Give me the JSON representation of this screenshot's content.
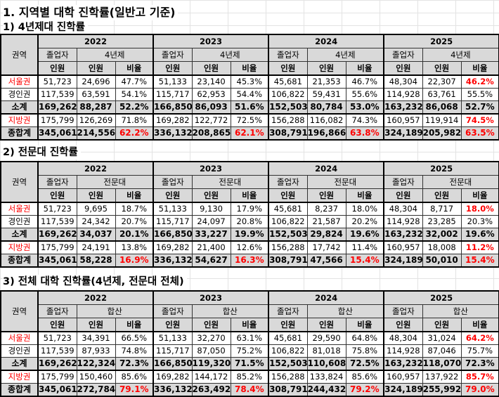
{
  "title": "1. 지역별 대학 진학률(일반고 기준)",
  "colors": {
    "highlight": "#ff0000",
    "header_bg": "#d9d9d9"
  },
  "headers": {
    "region": "권역",
    "graduates": "졸업자",
    "count": "인원",
    "ratio": "비율",
    "years": [
      "2022",
      "2023",
      "2024",
      "2025"
    ]
  },
  "sections": [
    {
      "title": "1) 4년제대 진학률",
      "group_label": "4년제",
      "rows": [
        {
          "label": "서울권",
          "label_red": true,
          "type": "data",
          "cells": [
            [
              "51,723",
              "24,696",
              "47.7%"
            ],
            [
              "51,133",
              "23,140",
              "45.3%"
            ],
            [
              "45,681",
              "21,353",
              "46.7%"
            ],
            [
              "48,304",
              "22,307",
              "46.2%"
            ]
          ],
          "red_ratio": [
            false,
            false,
            false,
            true
          ]
        },
        {
          "label": "경인권",
          "label_red": false,
          "type": "data",
          "cells": [
            [
              "117,539",
              "63,591",
              "54.1%"
            ],
            [
              "115,717",
              "62,953",
              "54.4%"
            ],
            [
              "106,822",
              "59,431",
              "55.6%"
            ],
            [
              "114,928",
              "63,761",
              "55.5%"
            ]
          ],
          "red_ratio": [
            false,
            false,
            false,
            false
          ]
        },
        {
          "label": "소계",
          "label_red": false,
          "type": "sum",
          "cells": [
            [
              "169,262",
              "88,287",
              "52.2%"
            ],
            [
              "166,850",
              "86,093",
              "51.6%"
            ],
            [
              "152,503",
              "80,784",
              "53.0%"
            ],
            [
              "163,232",
              "86,068",
              "52.7%"
            ]
          ],
          "red_ratio": [
            false,
            false,
            false,
            false
          ]
        },
        {
          "label": "지방권",
          "label_red": true,
          "type": "data",
          "cells": [
            [
              "175,799",
              "126,269",
              "71.8%"
            ],
            [
              "169,282",
              "122,772",
              "72.5%"
            ],
            [
              "156,288",
              "116,082",
              "74.3%"
            ],
            [
              "160,957",
              "119,914",
              "74.5%"
            ]
          ],
          "red_ratio": [
            false,
            false,
            false,
            true
          ]
        },
        {
          "label": "종합계",
          "label_red": false,
          "type": "total",
          "cells": [
            [
              "345,061",
              "214,556",
              "62.2%"
            ],
            [
              "336,132",
              "208,865",
              "62.1%"
            ],
            [
              "308,791",
              "196,866",
              "63.8%"
            ],
            [
              "324,189",
              "205,982",
              "63.5%"
            ]
          ],
          "red_ratio": [
            true,
            true,
            true,
            true
          ]
        }
      ]
    },
    {
      "title": "2) 전문대 진학률",
      "group_label": "전문대",
      "rows": [
        {
          "label": "서울권",
          "label_red": true,
          "type": "data",
          "cells": [
            [
              "51,723",
              "9,695",
              "18.7%"
            ],
            [
              "51,133",
              "9,130",
              "17.9%"
            ],
            [
              "45,681",
              "8,237",
              "18.0%"
            ],
            [
              "48,304",
              "8,717",
              "18.0%"
            ]
          ],
          "red_ratio": [
            false,
            false,
            false,
            true
          ]
        },
        {
          "label": "경인권",
          "label_red": false,
          "type": "data",
          "cells": [
            [
              "117,539",
              "24,342",
              "20.7%"
            ],
            [
              "115,717",
              "24,097",
              "20.8%"
            ],
            [
              "106,822",
              "21,587",
              "20.2%"
            ],
            [
              "114,928",
              "23,285",
              "20.3%"
            ]
          ],
          "red_ratio": [
            false,
            false,
            false,
            false
          ]
        },
        {
          "label": "소계",
          "label_red": false,
          "type": "sum",
          "cells": [
            [
              "169,262",
              "34,037",
              "20.1%"
            ],
            [
              "166,850",
              "33,227",
              "19.9%"
            ],
            [
              "152,503",
              "29,824",
              "19.6%"
            ],
            [
              "163,232",
              "32,002",
              "19.6%"
            ]
          ],
          "red_ratio": [
            false,
            false,
            false,
            false
          ]
        },
        {
          "label": "지방권",
          "label_red": true,
          "type": "data",
          "cells": [
            [
              "175,799",
              "24,191",
              "13.8%"
            ],
            [
              "169,282",
              "21,400",
              "12.6%"
            ],
            [
              "156,288",
              "17,742",
              "11.4%"
            ],
            [
              "160,957",
              "18,008",
              "11.2%"
            ]
          ],
          "red_ratio": [
            false,
            false,
            false,
            true
          ]
        },
        {
          "label": "종합계",
          "label_red": false,
          "type": "total",
          "cells": [
            [
              "345,061",
              "58,228",
              "16.9%"
            ],
            [
              "336,132",
              "54,627",
              "16.3%"
            ],
            [
              "308,791",
              "47,566",
              "15.4%"
            ],
            [
              "324,189",
              "50,010",
              "15.4%"
            ]
          ],
          "red_ratio": [
            true,
            true,
            true,
            true
          ]
        }
      ]
    },
    {
      "title": "3) 전체 대학 진학률(4년제, 전문대 전체)",
      "group_label": "합산",
      "rows": [
        {
          "label": "서울권",
          "label_red": true,
          "type": "data",
          "cells": [
            [
              "51,723",
              "34,391",
              "66.5%"
            ],
            [
              "51,133",
              "32,270",
              "63.1%"
            ],
            [
              "45,681",
              "29,590",
              "64.8%"
            ],
            [
              "48,304",
              "31,024",
              "64.2%"
            ]
          ],
          "red_ratio": [
            false,
            false,
            false,
            true
          ]
        },
        {
          "label": "경인권",
          "label_red": false,
          "type": "data",
          "cells": [
            [
              "117,539",
              "87,933",
              "74.8%"
            ],
            [
              "115,717",
              "87,050",
              "75.2%"
            ],
            [
              "106,822",
              "81,018",
              "75.8%"
            ],
            [
              "114,928",
              "87,046",
              "75.7%"
            ]
          ],
          "red_ratio": [
            false,
            false,
            false,
            false
          ]
        },
        {
          "label": "소계",
          "label_red": false,
          "type": "sum",
          "cells": [
            [
              "169,262",
              "122,324",
              "72.3%"
            ],
            [
              "166,850",
              "119,320",
              "71.5%"
            ],
            [
              "152,503",
              "110,608",
              "72.5%"
            ],
            [
              "163,232",
              "118,070",
              "72.3%"
            ]
          ],
          "red_ratio": [
            false,
            false,
            false,
            false
          ]
        },
        {
          "label": "지방권",
          "label_red": true,
          "type": "data",
          "cells": [
            [
              "175,799",
              "150,460",
              "85.6%"
            ],
            [
              "169,282",
              "144,172",
              "85.2%"
            ],
            [
              "156,288",
              "133,824",
              "85.6%"
            ],
            [
              "160,957",
              "137,922",
              "85.7%"
            ]
          ],
          "red_ratio": [
            false,
            false,
            false,
            true
          ]
        },
        {
          "label": "종합계",
          "label_red": false,
          "type": "total",
          "cells": [
            [
              "345,061",
              "272,784",
              "79.1%"
            ],
            [
              "336,132",
              "263,492",
              "78.4%"
            ],
            [
              "308,791",
              "244,432",
              "79.2%"
            ],
            [
              "324,189",
              "255,992",
              "79.0%"
            ]
          ],
          "red_ratio": [
            true,
            true,
            true,
            true
          ]
        }
      ]
    }
  ]
}
